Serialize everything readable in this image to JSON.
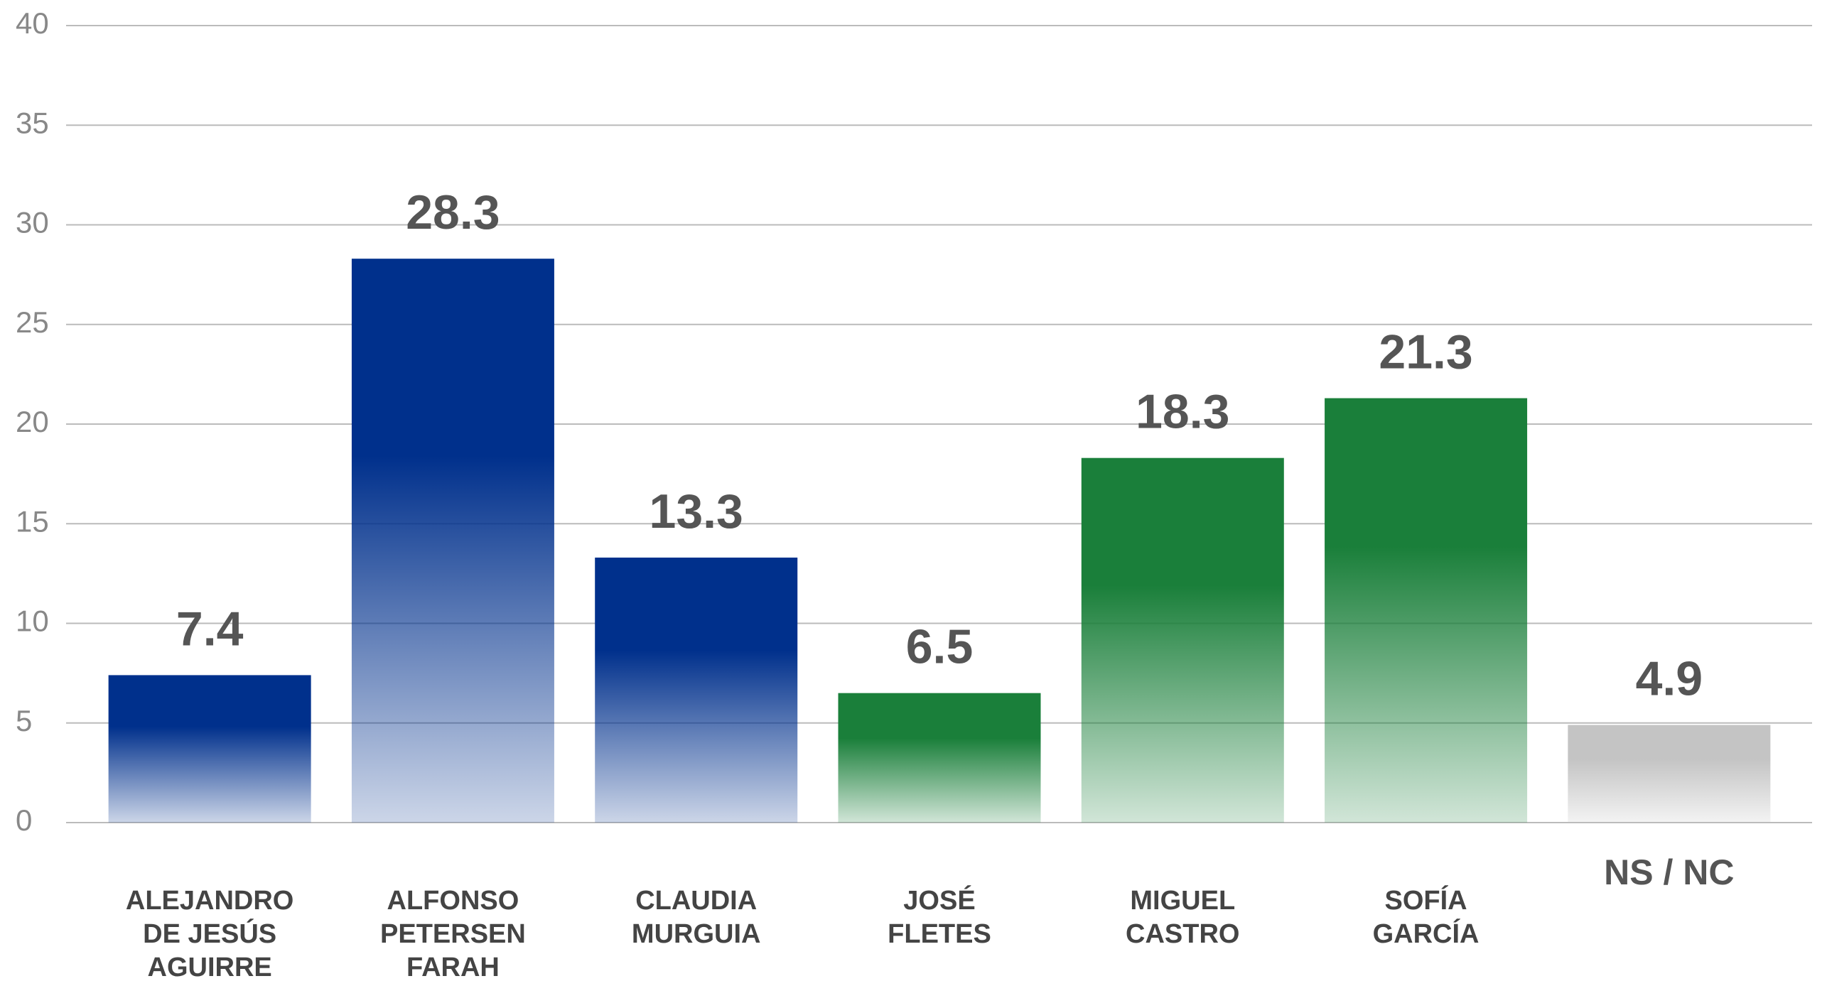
{
  "chart_data": {
    "type": "bar",
    "categories": [
      "ALEJANDRO\nDE JESÚS\nAGUIRRE",
      "ALFONSO\nPETERSEN\nFARAH",
      "CLAUDIA\nMURGUIA",
      "JOSÉ\nFLETES",
      "MIGUEL\nCASTRO",
      "SOFÍA\nGARCÍA",
      "NS / NC"
    ],
    "values": [
      7.4,
      28.3,
      13.3,
      6.5,
      18.3,
      21.3,
      4.9
    ],
    "colors": [
      "#00308c",
      "#00308c",
      "#00308c",
      "#1a7f3a",
      "#1a7f3a",
      "#1a7f3a",
      "#c4c4c4"
    ],
    "ylim": [
      0,
      40
    ],
    "yticks": [
      0,
      5,
      10,
      15,
      20,
      25,
      30,
      35,
      40
    ],
    "grid": true
  }
}
